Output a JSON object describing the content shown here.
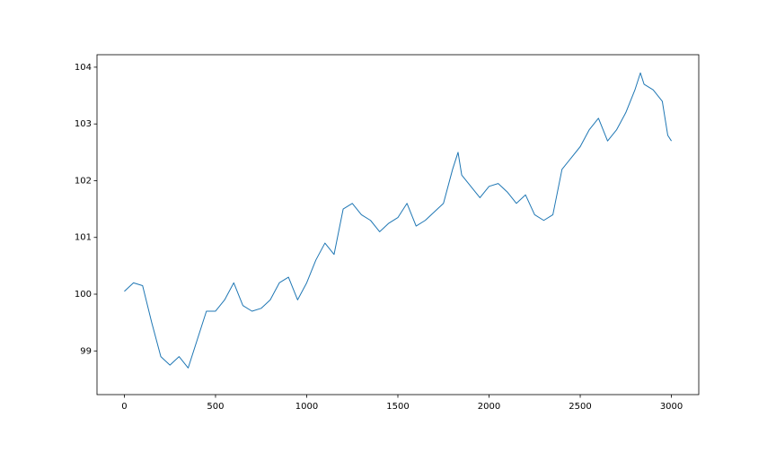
{
  "chart_data": {
    "type": "line",
    "color": "#1f77b4",
    "x": [
      0,
      50,
      100,
      150,
      200,
      250,
      300,
      350,
      400,
      450,
      500,
      550,
      600,
      650,
      700,
      750,
      800,
      850,
      900,
      950,
      1000,
      1050,
      1100,
      1150,
      1200,
      1250,
      1300,
      1350,
      1400,
      1450,
      1500,
      1550,
      1600,
      1650,
      1700,
      1750,
      1800,
      1830,
      1850,
      1900,
      1950,
      2000,
      2050,
      2100,
      2150,
      2200,
      2250,
      2300,
      2350,
      2400,
      2450,
      2500,
      2550,
      2600,
      2650,
      2700,
      2750,
      2800,
      2830,
      2850,
      2900,
      2950,
      2980,
      3000
    ],
    "values": [
      100.05,
      100.2,
      100.15,
      99.5,
      98.9,
      98.75,
      98.9,
      98.7,
      99.2,
      99.7,
      99.7,
      99.9,
      100.2,
      99.8,
      99.7,
      99.75,
      99.9,
      100.2,
      100.3,
      99.9,
      100.2,
      100.6,
      100.9,
      100.7,
      101.5,
      101.6,
      101.4,
      101.3,
      101.1,
      101.25,
      101.35,
      101.6,
      101.2,
      101.3,
      101.45,
      101.6,
      102.2,
      102.5,
      102.1,
      101.9,
      101.7,
      101.9,
      101.95,
      101.8,
      101.6,
      101.75,
      101.4,
      101.3,
      101.4,
      102.2,
      102.4,
      102.6,
      102.9,
      103.1,
      102.7,
      102.9,
      103.2,
      103.6,
      103.9,
      103.7,
      103.6,
      103.4,
      102.8,
      102.7
    ],
    "xlim": [
      -150,
      3150
    ],
    "ylim": [
      98.23,
      104.22
    ],
    "xticks": [
      0,
      500,
      1000,
      1500,
      2000,
      2500,
      3000
    ],
    "yticks": [
      99,
      100,
      101,
      102,
      103,
      104
    ],
    "grid": false
  }
}
